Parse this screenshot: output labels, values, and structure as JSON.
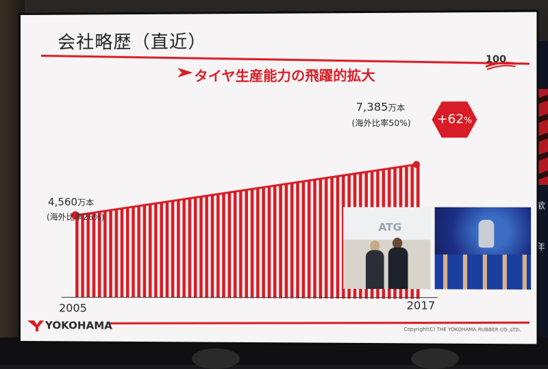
{
  "slide": {
    "title": "会社略歴（直近）",
    "subtitle": "タイヤ生産能力の飛躍的拡大",
    "logo_text": "100",
    "brand": "YOKOHAMA",
    "copyright": "Copyright(C) THE YOKOHAMA RUBBER CO.,LTD."
  },
  "photos": {
    "sign_text": "ATG"
  },
  "room": {
    "right_text_1": "歓",
    "right_text_2": "年"
  },
  "chart_data": {
    "type": "area",
    "title": "タイヤ生産能力の飛躍的拡大",
    "x": [
      "2005",
      "2017"
    ],
    "series": [
      {
        "values": [
          4560,
          7385
        ]
      }
    ],
    "unit": "万本",
    "annotations": {
      "start_value": "4,560",
      "start_unit": "万本",
      "start_note": "(海外比率26%)",
      "end_value": "7,385",
      "end_unit": "万本",
      "end_note": "(海外比率50%)",
      "change": "+62",
      "change_suffix": "%"
    },
    "xlabels": [
      "2005",
      "2017"
    ],
    "colors": {
      "accent": "#d81d26"
    }
  }
}
